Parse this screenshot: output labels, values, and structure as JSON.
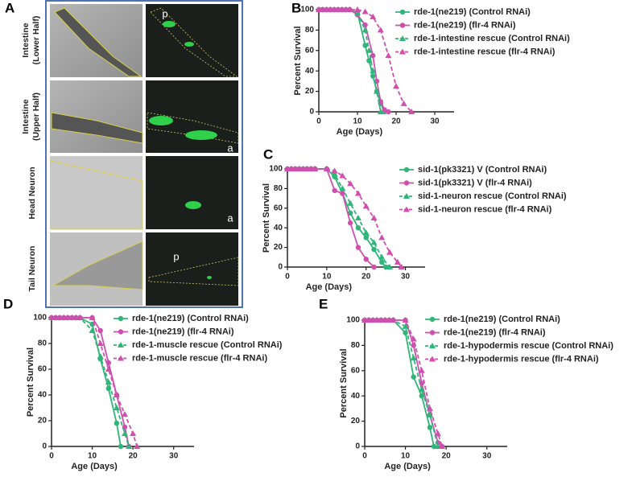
{
  "panel_labels": [
    "A",
    "B",
    "C",
    "D",
    "E"
  ],
  "micrographs": {
    "row_labels": [
      [
        "Intestine",
        "(Lower Half)"
      ],
      [
        "Intestine",
        "(Upper Half)"
      ],
      [
        "Head Neuron"
      ],
      [
        "Tail Neuron"
      ]
    ],
    "annotations": [
      "p",
      "a",
      "a",
      "p"
    ]
  },
  "chart_data": [
    {
      "type": "line",
      "ylabel": "Percent Survival",
      "xlabel": "Age (Days)",
      "xlim": [
        0,
        35
      ],
      "xticks": [
        0,
        10,
        20,
        30
      ],
      "ylim": [
        0,
        100
      ],
      "yticks": [
        0,
        20,
        40,
        60,
        80,
        100
      ],
      "series": [
        {
          "name": "rde-1(ne219) (Control RNAi)",
          "color": "#2fb57a",
          "marker": "circle",
          "dashed": false,
          "x": [
            0,
            1,
            2,
            3,
            4,
            5,
            6,
            7,
            8,
            10,
            12,
            13,
            14,
            15,
            16,
            17
          ],
          "values": [
            100,
            100,
            100,
            100,
            100,
            100,
            100,
            100,
            100,
            97,
            65,
            50,
            35,
            20,
            8,
            0
          ]
        },
        {
          "name": "rde-1(ne219) (flr-4 RNAi)",
          "color": "#d04fae",
          "marker": "circle",
          "dashed": false,
          "x": [
            0,
            1,
            2,
            3,
            4,
            5,
            6,
            7,
            8,
            10,
            12,
            14,
            15,
            16,
            17,
            18
          ],
          "values": [
            100,
            100,
            100,
            100,
            100,
            100,
            100,
            100,
            100,
            95,
            85,
            55,
            30,
            10,
            2,
            0
          ]
        },
        {
          "name": "rde-1-intestine rescue (Control RNAi)",
          "color": "#2fb57a",
          "marker": "triangle",
          "dashed": true,
          "x": [
            0,
            1,
            2,
            3,
            4,
            5,
            6,
            7,
            8,
            10,
            12,
            13,
            14,
            15,
            16
          ],
          "values": [
            100,
            100,
            100,
            100,
            100,
            100,
            100,
            100,
            100,
            97,
            80,
            60,
            40,
            20,
            0
          ]
        },
        {
          "name": "rde-1-intestine rescue (flr-4 RNAi)",
          "color": "#d04fae",
          "marker": "triangle",
          "dashed": true,
          "x": [
            0,
            1,
            2,
            3,
            4,
            5,
            6,
            7,
            8,
            10,
            12,
            14,
            16,
            18,
            20,
            22,
            24
          ],
          "values": [
            100,
            100,
            100,
            100,
            100,
            100,
            100,
            100,
            100,
            100,
            98,
            93,
            80,
            55,
            25,
            8,
            0
          ]
        }
      ]
    },
    {
      "type": "line",
      "ylabel": "Percent Survival",
      "xlabel": "Age (Days)",
      "xlim": [
        0,
        35
      ],
      "xticks": [
        0,
        10,
        20,
        30
      ],
      "ylim": [
        0,
        100
      ],
      "yticks": [
        0,
        20,
        40,
        60,
        80,
        100
      ],
      "series": [
        {
          "name": "sid-1(pk3321) V (Control RNAi)",
          "color": "#2fb57a",
          "marker": "circle",
          "dashed": false,
          "x": [
            0,
            1,
            2,
            3,
            4,
            5,
            6,
            7,
            10,
            12,
            14,
            16,
            18,
            20,
            22,
            24,
            25
          ],
          "values": [
            100,
            100,
            100,
            100,
            100,
            100,
            100,
            100,
            100,
            92,
            75,
            55,
            40,
            30,
            18,
            5,
            0
          ]
        },
        {
          "name": "sid-1(pk3321) V (flr-4 RNAi)",
          "color": "#d04fae",
          "marker": "circle",
          "dashed": false,
          "x": [
            0,
            1,
            2,
            3,
            4,
            5,
            6,
            7,
            10,
            12,
            14,
            16,
            18,
            20,
            22
          ],
          "values": [
            100,
            100,
            100,
            100,
            100,
            100,
            100,
            100,
            100,
            78,
            75,
            45,
            20,
            8,
            0
          ]
        },
        {
          "name": "sid-1-neuron rescue (Control RNAi)",
          "color": "#2fb57a",
          "marker": "triangle",
          "dashed": true,
          "x": [
            0,
            1,
            2,
            3,
            4,
            5,
            6,
            7,
            10,
            12,
            14,
            16,
            18,
            20,
            22,
            24,
            26
          ],
          "values": [
            100,
            100,
            100,
            100,
            100,
            100,
            100,
            100,
            100,
            95,
            80,
            65,
            50,
            35,
            25,
            10,
            0
          ]
        },
        {
          "name": "sid-1-neuron rescue (flr-4 RNAi)",
          "color": "#d04fae",
          "marker": "triangle",
          "dashed": true,
          "x": [
            0,
            1,
            2,
            3,
            4,
            5,
            6,
            7,
            10,
            12,
            14,
            16,
            18,
            20,
            22,
            24,
            26,
            28,
            29
          ],
          "values": [
            100,
            100,
            100,
            100,
            100,
            100,
            100,
            100,
            100,
            98,
            93,
            85,
            75,
            62,
            50,
            30,
            15,
            5,
            0
          ]
        }
      ]
    },
    {
      "type": "line",
      "ylabel": "Percent Survival",
      "xlabel": "Age (Days)",
      "xlim": [
        0,
        35
      ],
      "xticks": [
        0,
        10,
        20,
        30
      ],
      "ylim": [
        0,
        100
      ],
      "yticks": [
        0,
        20,
        40,
        60,
        80,
        100
      ],
      "series": [
        {
          "name": "rde-1(ne219) (Control RNAi)",
          "color": "#2fb57a",
          "marker": "circle",
          "dashed": false,
          "x": [
            0,
            1,
            2,
            3,
            4,
            5,
            6,
            7,
            10,
            12,
            14,
            16,
            17
          ],
          "values": [
            100,
            100,
            100,
            100,
            100,
            100,
            100,
            100,
            95,
            68,
            45,
            18,
            0
          ]
        },
        {
          "name": "rde-1(ne219) (flr-4 RNAi)",
          "color": "#d04fae",
          "marker": "circle",
          "dashed": false,
          "x": [
            0,
            1,
            2,
            3,
            4,
            5,
            6,
            7,
            10,
            12,
            14,
            16,
            18,
            19
          ],
          "values": [
            100,
            100,
            100,
            100,
            100,
            100,
            100,
            100,
            100,
            90,
            65,
            40,
            15,
            0
          ]
        },
        {
          "name": "rde-1-muscle rescue (Control RNAi)",
          "color": "#2fb57a",
          "marker": "triangle",
          "dashed": true,
          "x": [
            0,
            1,
            2,
            3,
            4,
            5,
            6,
            7,
            10,
            12,
            14,
            16,
            18,
            19
          ],
          "values": [
            100,
            100,
            100,
            100,
            100,
            100,
            100,
            100,
            90,
            70,
            50,
            30,
            10,
            0
          ]
        },
        {
          "name": "rde-1-muscle rescue (flr-4 RNAi)",
          "color": "#d04fae",
          "marker": "triangle",
          "dashed": true,
          "x": [
            0,
            1,
            2,
            3,
            4,
            5,
            6,
            7,
            10,
            12,
            14,
            16,
            18,
            20,
            21
          ],
          "values": [
            100,
            100,
            100,
            100,
            100,
            100,
            100,
            100,
            100,
            80,
            60,
            40,
            25,
            10,
            0
          ]
        }
      ]
    },
    {
      "type": "line",
      "ylabel": "Percent Survival",
      "xlabel": "Age (Days)",
      "xlim": [
        0,
        35
      ],
      "xticks": [
        0,
        10,
        20,
        30
      ],
      "ylim": [
        0,
        100
      ],
      "yticks": [
        0,
        20,
        40,
        60,
        80,
        100
      ],
      "series": [
        {
          "name": "rde-1(ne219) (Control RNAi)",
          "color": "#2fb57a",
          "marker": "circle",
          "dashed": false,
          "x": [
            0,
            1,
            2,
            3,
            4,
            5,
            6,
            7,
            10,
            12,
            14,
            16,
            17
          ],
          "values": [
            100,
            100,
            100,
            100,
            100,
            100,
            100,
            100,
            90,
            55,
            40,
            15,
            0
          ]
        },
        {
          "name": "rde-1(ne219) (flr-4 RNAi)",
          "color": "#d04fae",
          "marker": "circle",
          "dashed": false,
          "x": [
            0,
            1,
            2,
            3,
            4,
            5,
            6,
            7,
            10,
            12,
            14,
            16,
            18,
            19
          ],
          "values": [
            100,
            100,
            100,
            100,
            100,
            100,
            100,
            100,
            100,
            80,
            50,
            25,
            3,
            0
          ]
        },
        {
          "name": "rde-1-hypodermis rescue (Control RNAi)",
          "color": "#2fb57a",
          "marker": "triangle",
          "dashed": true,
          "x": [
            0,
            1,
            2,
            3,
            4,
            5,
            6,
            7,
            10,
            12,
            14,
            16,
            18
          ],
          "values": [
            100,
            100,
            100,
            100,
            100,
            100,
            100,
            100,
            95,
            70,
            45,
            25,
            0
          ]
        },
        {
          "name": "rde-1-hypodermis rescue (flr-4 RNAi)",
          "color": "#d04fae",
          "marker": "triangle",
          "dashed": true,
          "x": [
            0,
            1,
            2,
            3,
            4,
            5,
            6,
            7,
            10,
            12,
            14,
            16,
            18,
            19
          ],
          "values": [
            100,
            100,
            100,
            100,
            100,
            100,
            100,
            100,
            100,
            85,
            60,
            30,
            10,
            0
          ]
        }
      ]
    }
  ]
}
